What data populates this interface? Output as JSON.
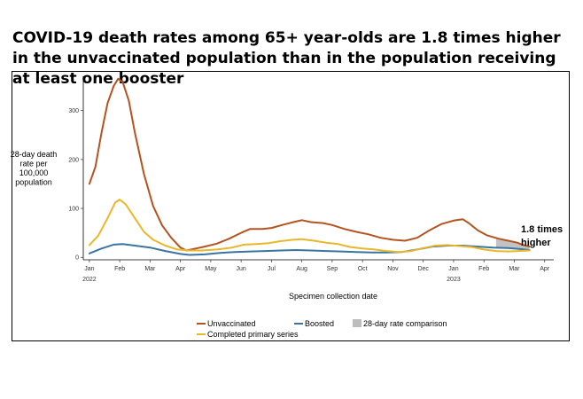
{
  "chart_data": {
    "type": "line",
    "title": "COVID-19 death rates among 65+ year-olds are 1.8 times higher in the unvaccinated population than in the population receiving at least one booster",
    "xlabel": "Specimen collection date",
    "ylabel": "28-day death rate per 100,000 population",
    "ylim": [
      -5,
      370
    ],
    "xlim": [
      -0.2,
      15.3
    ],
    "yticks": [
      0,
      100,
      200,
      300
    ],
    "xticks": [
      {
        "v": 0,
        "label": "Jan",
        "year": "2022"
      },
      {
        "v": 1,
        "label": "Feb"
      },
      {
        "v": 2,
        "label": "Mar"
      },
      {
        "v": 3,
        "label": "Apr"
      },
      {
        "v": 4,
        "label": "May"
      },
      {
        "v": 5,
        "label": "Jun"
      },
      {
        "v": 6,
        "label": "Jul"
      },
      {
        "v": 7,
        "label": "Aug"
      },
      {
        "v": 8,
        "label": "Sep"
      },
      {
        "v": 9,
        "label": "Oct"
      },
      {
        "v": 10,
        "label": "Nov"
      },
      {
        "v": 11,
        "label": "Dec"
      },
      {
        "v": 12,
        "label": "Jan",
        "year": "2023"
      },
      {
        "v": 13,
        "label": "Feb"
      },
      {
        "v": 14,
        "label": "Mar"
      },
      {
        "v": 15,
        "label": "Apr"
      }
    ],
    "series": [
      {
        "name": "Unvaccinated",
        "color": "#b5531f",
        "points": [
          [
            0,
            150
          ],
          [
            0.2,
            185
          ],
          [
            0.4,
            255
          ],
          [
            0.6,
            315
          ],
          [
            0.8,
            350
          ],
          [
            0.95,
            365
          ],
          [
            1.1,
            358
          ],
          [
            1.3,
            320
          ],
          [
            1.5,
            255
          ],
          [
            1.8,
            170
          ],
          [
            2.1,
            105
          ],
          [
            2.4,
            65
          ],
          [
            2.7,
            40
          ],
          [
            3.0,
            20
          ],
          [
            3.2,
            14
          ],
          [
            3.5,
            18
          ],
          [
            3.8,
            22
          ],
          [
            4.2,
            28
          ],
          [
            4.6,
            38
          ],
          [
            5.0,
            50
          ],
          [
            5.3,
            58
          ],
          [
            5.7,
            58
          ],
          [
            6.0,
            60
          ],
          [
            6.4,
            67
          ],
          [
            6.8,
            73
          ],
          [
            7.0,
            76
          ],
          [
            7.3,
            72
          ],
          [
            7.7,
            70
          ],
          [
            8.0,
            66
          ],
          [
            8.4,
            58
          ],
          [
            8.8,
            52
          ],
          [
            9.2,
            47
          ],
          [
            9.6,
            40
          ],
          [
            10.0,
            36
          ],
          [
            10.4,
            34
          ],
          [
            10.8,
            40
          ],
          [
            11.2,
            55
          ],
          [
            11.6,
            68
          ],
          [
            12.0,
            75
          ],
          [
            12.3,
            78
          ],
          [
            12.5,
            70
          ],
          [
            12.8,
            55
          ],
          [
            13.1,
            45
          ],
          [
            13.5,
            38
          ],
          [
            13.8,
            34
          ],
          [
            14.1,
            30
          ],
          [
            14.3,
            25
          ],
          [
            14.5,
            22
          ]
        ]
      },
      {
        "name": "Boosted",
        "color": "#3b74a0",
        "points": [
          [
            0,
            8
          ],
          [
            0.4,
            18
          ],
          [
            0.8,
            26
          ],
          [
            1.1,
            27
          ],
          [
            1.5,
            24
          ],
          [
            2.0,
            20
          ],
          [
            2.5,
            13
          ],
          [
            3.0,
            7
          ],
          [
            3.3,
            5
          ],
          [
            3.8,
            6
          ],
          [
            4.3,
            9
          ],
          [
            4.8,
            11
          ],
          [
            5.3,
            12
          ],
          [
            5.8,
            13
          ],
          [
            6.3,
            14
          ],
          [
            6.8,
            15
          ],
          [
            7.3,
            14
          ],
          [
            7.8,
            13
          ],
          [
            8.3,
            12
          ],
          [
            8.8,
            11
          ],
          [
            9.3,
            10
          ],
          [
            9.8,
            10
          ],
          [
            10.3,
            11
          ],
          [
            10.8,
            16
          ],
          [
            11.3,
            22
          ],
          [
            11.8,
            24
          ],
          [
            12.3,
            24
          ],
          [
            12.8,
            22
          ],
          [
            13.3,
            20
          ],
          [
            13.8,
            19
          ],
          [
            14.2,
            17
          ],
          [
            14.5,
            15
          ]
        ]
      },
      {
        "name": "Completed primary series",
        "color": "#e8b72a",
        "points": [
          [
            0,
            25
          ],
          [
            0.3,
            45
          ],
          [
            0.6,
            80
          ],
          [
            0.85,
            112
          ],
          [
            1.0,
            118
          ],
          [
            1.2,
            108
          ],
          [
            1.5,
            80
          ],
          [
            1.8,
            52
          ],
          [
            2.1,
            36
          ],
          [
            2.5,
            24
          ],
          [
            2.9,
            16
          ],
          [
            3.3,
            14
          ],
          [
            3.7,
            14
          ],
          [
            4.2,
            16
          ],
          [
            4.7,
            20
          ],
          [
            5.1,
            26
          ],
          [
            5.5,
            27
          ],
          [
            5.9,
            29
          ],
          [
            6.3,
            33
          ],
          [
            6.7,
            36
          ],
          [
            7.0,
            37
          ],
          [
            7.4,
            34
          ],
          [
            7.8,
            30
          ],
          [
            8.2,
            27
          ],
          [
            8.6,
            21
          ],
          [
            9.0,
            18
          ],
          [
            9.4,
            16
          ],
          [
            9.8,
            13
          ],
          [
            10.2,
            11
          ],
          [
            10.6,
            13
          ],
          [
            11.0,
            19
          ],
          [
            11.4,
            24
          ],
          [
            11.8,
            25
          ],
          [
            12.2,
            23
          ],
          [
            12.6,
            21
          ],
          [
            13.0,
            16
          ],
          [
            13.4,
            13
          ],
          [
            13.8,
            12
          ],
          [
            14.1,
            13
          ],
          [
            14.5,
            14
          ]
        ]
      }
    ],
    "shaded_region": {
      "name": "28-day rate comparison",
      "color": "#bdbdbd",
      "x_start": 13.4,
      "x_end": 14.5
    },
    "legend": [
      {
        "name": "Unvaccinated",
        "color": "#b5531f",
        "kind": "line"
      },
      {
        "name": "Boosted",
        "color": "#3b74a0",
        "kind": "line"
      },
      {
        "name": "28-day rate comparison",
        "color": "#bdbdbd",
        "kind": "box"
      },
      {
        "name": "Completed primary series",
        "color": "#e8b72a",
        "kind": "line"
      }
    ],
    "annotation": {
      "line1": "1.8 times",
      "line2": "higher"
    },
    "ylabel_lines": [
      "28-day death",
      "rate per",
      "100,000",
      "population"
    ]
  }
}
